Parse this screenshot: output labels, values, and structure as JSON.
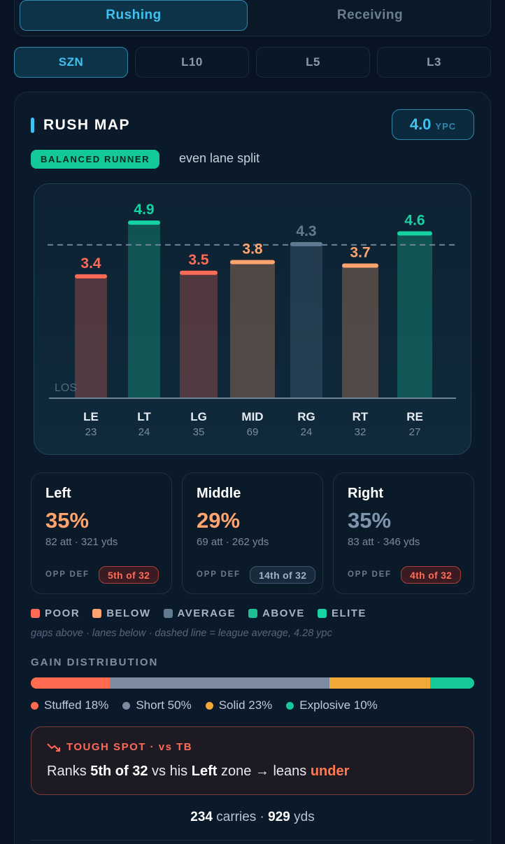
{
  "tabs": [
    {
      "label": "Rushing",
      "active": true
    },
    {
      "label": "Receiving",
      "active": false
    }
  ],
  "periods": [
    {
      "label": "SZN",
      "active": true
    },
    {
      "label": "L10",
      "active": false
    },
    {
      "label": "L5",
      "active": false
    },
    {
      "label": "L3",
      "active": false
    }
  ],
  "rush_map": {
    "title": "RUSH MAP",
    "ypc_value": "4.0",
    "ypc_unit": "YPC",
    "runner_badge": "BALANCED RUNNER",
    "runner_note": "even lane split",
    "los_label": "LOS"
  },
  "chart_data": {
    "type": "bar",
    "league_average": 4.28,
    "categories": [
      "LE",
      "LT",
      "LG",
      "MID",
      "RG",
      "RT",
      "RE"
    ],
    "values": [
      3.4,
      4.9,
      3.5,
      3.8,
      4.3,
      3.7,
      4.6
    ],
    "value_labels": [
      "3.4",
      "4.9",
      "3.5",
      "3.8",
      "4.3",
      "3.7",
      "4.6"
    ],
    "attempts": [
      "23",
      "24",
      "35",
      "69",
      "24",
      "32",
      "27"
    ],
    "tiers": [
      "poor",
      "elite",
      "poor",
      "below",
      "average",
      "below",
      "elite"
    ]
  },
  "tier_colors": {
    "poor": "#ff6b57",
    "below": "#ffa46e",
    "average": "#5f7b92",
    "above": "#1fbf95",
    "elite": "#15d3a3"
  },
  "zones": [
    {
      "name": "Left",
      "pct": "35%",
      "stats": "82 att · 321 yds",
      "opp_label": "OPP DEF",
      "rank": "5th of 32",
      "rank_tier": "poor",
      "pct_color": "#ffa46e"
    },
    {
      "name": "Middle",
      "pct": "29%",
      "stats": "69 att · 262 yds",
      "opp_label": "OPP DEF",
      "rank": "14th of 32",
      "rank_tier": "average",
      "pct_color": "#ffa46e"
    },
    {
      "name": "Right",
      "pct": "35%",
      "stats": "83 att · 346 yds",
      "opp_label": "OPP DEF",
      "rank": "4th of 32",
      "rank_tier": "poor",
      "pct_color": "#7d95ad"
    }
  ],
  "legend": [
    {
      "label": "POOR",
      "color": "#ff6b57"
    },
    {
      "label": "BELOW",
      "color": "#ffa46e"
    },
    {
      "label": "AVERAGE",
      "color": "#5f7b92"
    },
    {
      "label": "ABOVE",
      "color": "#1fbf95"
    },
    {
      "label": "ELITE",
      "color": "#15d3a3"
    }
  ],
  "footnote": "gaps above · lanes below · dashed line = league average, 4.28 ypc",
  "gain_distribution": {
    "title": "GAIN DISTRIBUTION",
    "segments": [
      {
        "label": "Stuffed 18%",
        "pct": 18,
        "color": "#ff6b50"
      },
      {
        "label": "Short 50%",
        "pct": 50,
        "color": "#7d8ca0"
      },
      {
        "label": "Solid 23%",
        "pct": 23,
        "color": "#f0a836"
      },
      {
        "label": "Explosive 10%",
        "pct": 10,
        "color": "#15c99a"
      }
    ]
  },
  "tough_spot": {
    "heading": "TOUGH SPOT · vs TB",
    "text_prefix": "Ranks ",
    "rank": "5th of 32",
    "text_mid": " vs his ",
    "zone": "Left",
    "text_after": " zone → leans ",
    "lean": "under"
  },
  "totals": {
    "carries": "234",
    "carries_label": " carries · ",
    "yards": "929",
    "yards_label": " yds"
  }
}
